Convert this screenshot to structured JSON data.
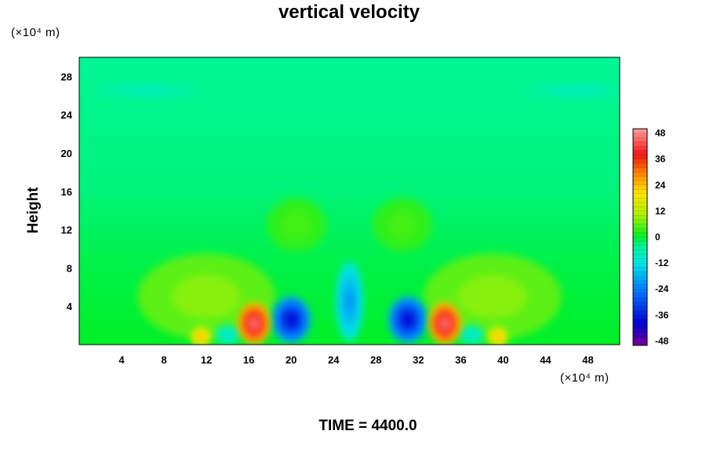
{
  "chart_data": {
    "type": "heatmap",
    "title": "vertical velocity",
    "ylabel": "Height",
    "x_unit": "(×10⁴ m)",
    "y_unit": "(×10⁴ m)",
    "footer": "TIME = 4400.0",
    "xlim": [
      0,
      51
    ],
    "ylim": [
      0,
      30
    ],
    "x_ticks": [
      4,
      8,
      12,
      16,
      20,
      24,
      28,
      32,
      36,
      40,
      44,
      48
    ],
    "y_ticks": [
      4,
      8,
      12,
      16,
      20,
      24,
      28
    ],
    "colorbar": {
      "range": [
        -50,
        50
      ],
      "ticks": [
        48,
        36,
        24,
        12,
        0,
        -12,
        -24,
        -36,
        -48
      ],
      "colormap": "rainbow"
    },
    "features": [
      {
        "x": 16.5,
        "y": 2.2,
        "value": 48
      },
      {
        "x": 34.5,
        "y": 2.2,
        "value": 48
      },
      {
        "x": 20.0,
        "y": 2.6,
        "value": -40
      },
      {
        "x": 31.0,
        "y": 2.6,
        "value": -40
      },
      {
        "x": 25.5,
        "y": 4.5,
        "value": -22
      },
      {
        "x": 11.5,
        "y": 0.8,
        "value": 26
      },
      {
        "x": 39.5,
        "y": 0.8,
        "value": 26
      },
      {
        "x": 14.0,
        "y": 1.0,
        "value": -10
      },
      {
        "x": 37.0,
        "y": 1.0,
        "value": -10
      },
      {
        "x": 6.5,
        "y": 26.5,
        "value": -8
      },
      {
        "x": 47.0,
        "y": 26.5,
        "value": -8
      },
      {
        "x": 20.5,
        "y": 12.5,
        "value": 4
      },
      {
        "x": 30.5,
        "y": 12.5,
        "value": 4
      },
      {
        "x": 12.0,
        "y": 5.0,
        "value": 8
      },
      {
        "x": 39.0,
        "y": 5.0,
        "value": 8
      }
    ]
  }
}
